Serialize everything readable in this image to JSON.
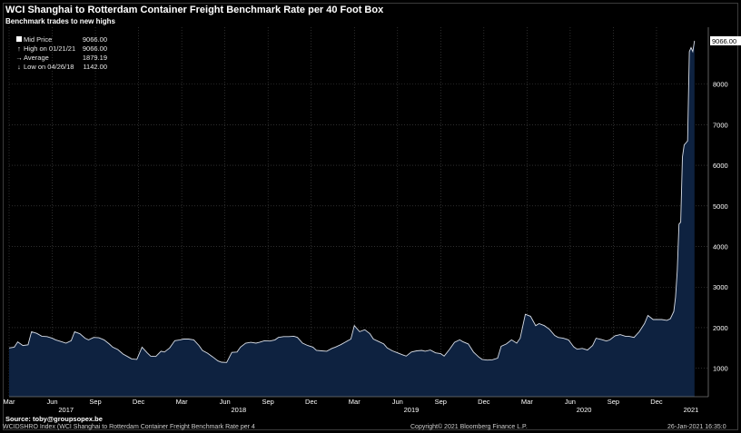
{
  "chart_data": {
    "type": "area",
    "title": "WCI Shanghai to Rotterdam Container Freight Benchmark Rate per 40 Foot Box",
    "subtitle": "Benchmark trades to new highs",
    "legend": [
      {
        "label": "Mid Price",
        "value": "9066.00",
        "icon": "square-icon"
      },
      {
        "label": "High on 01/21/21",
        "value": "9066.00",
        "icon": "high-marker-icon"
      },
      {
        "label": "Average",
        "value": "1879.19",
        "icon": "average-marker-icon"
      },
      {
        "label": "Low on 04/26/18",
        "value": "1142.00",
        "icon": "low-marker-icon"
      }
    ],
    "last_value_label": "9066.00",
    "y_ticks": [
      "1000",
      "2000",
      "3000",
      "4000",
      "5000",
      "6000",
      "7000",
      "8000"
    ],
    "ylim": [
      300,
      9400
    ],
    "x_ticks": [
      {
        "label": "Mar",
        "t": 0.0
      },
      {
        "label": "Jun",
        "t": 0.25
      },
      {
        "label": "Sep",
        "t": 0.5
      },
      {
        "label": "Dec",
        "t": 0.75
      },
      {
        "label": "Mar",
        "t": 1.0
      },
      {
        "label": "Jun",
        "t": 1.25
      },
      {
        "label": "Sep",
        "t": 1.5
      },
      {
        "label": "Dec",
        "t": 1.75
      },
      {
        "label": "Mar",
        "t": 2.0
      },
      {
        "label": "Jun",
        "t": 2.25
      },
      {
        "label": "Sep",
        "t": 2.5
      },
      {
        "label": "Dec",
        "t": 2.75
      },
      {
        "label": "Mar",
        "t": 3.0
      },
      {
        "label": "Jun",
        "t": 3.25
      },
      {
        "label": "Sep",
        "t": 3.5
      },
      {
        "label": "Dec",
        "t": 3.75
      }
    ],
    "year_labels": [
      {
        "label": "2017",
        "t": 0.33
      },
      {
        "label": "2018",
        "t": 1.33
      },
      {
        "label": "2019",
        "t": 2.33
      },
      {
        "label": "2020",
        "t": 3.33
      },
      {
        "label": "2021",
        "t": 3.95
      }
    ],
    "x_range": [
      0,
      4.05
    ],
    "series": [
      {
        "points": [
          [
            0.0,
            1500
          ],
          [
            0.03,
            1520
          ],
          [
            0.05,
            1650
          ],
          [
            0.08,
            1560
          ],
          [
            0.11,
            1580
          ],
          [
            0.13,
            1900
          ],
          [
            0.16,
            1860
          ],
          [
            0.19,
            1790
          ],
          [
            0.22,
            1780
          ],
          [
            0.25,
            1740
          ],
          [
            0.27,
            1700
          ],
          [
            0.3,
            1660
          ],
          [
            0.33,
            1620
          ],
          [
            0.36,
            1680
          ],
          [
            0.38,
            1900
          ],
          [
            0.41,
            1850
          ],
          [
            0.44,
            1740
          ],
          [
            0.46,
            1700
          ],
          [
            0.49,
            1760
          ],
          [
            0.52,
            1750
          ],
          [
            0.55,
            1700
          ],
          [
            0.58,
            1600
          ],
          [
            0.6,
            1520
          ],
          [
            0.63,
            1460
          ],
          [
            0.66,
            1350
          ],
          [
            0.69,
            1280
          ],
          [
            0.71,
            1230
          ],
          [
            0.74,
            1220
          ],
          [
            0.77,
            1520
          ],
          [
            0.8,
            1380
          ],
          [
            0.82,
            1300
          ],
          [
            0.85,
            1290
          ],
          [
            0.88,
            1420
          ],
          [
            0.9,
            1400
          ],
          [
            0.93,
            1500
          ],
          [
            0.96,
            1680
          ],
          [
            0.99,
            1700
          ],
          [
            1.01,
            1720
          ],
          [
            1.04,
            1720
          ],
          [
            1.07,
            1700
          ],
          [
            1.1,
            1560
          ],
          [
            1.12,
            1440
          ],
          [
            1.15,
            1370
          ],
          [
            1.18,
            1280
          ],
          [
            1.21,
            1180
          ],
          [
            1.23,
            1150
          ],
          [
            1.26,
            1142
          ],
          [
            1.29,
            1390
          ],
          [
            1.32,
            1400
          ],
          [
            1.34,
            1520
          ],
          [
            1.37,
            1620
          ],
          [
            1.4,
            1640
          ],
          [
            1.43,
            1620
          ],
          [
            1.45,
            1640
          ],
          [
            1.48,
            1680
          ],
          [
            1.51,
            1670
          ],
          [
            1.54,
            1700
          ],
          [
            1.56,
            1760
          ],
          [
            1.59,
            1780
          ],
          [
            1.62,
            1780
          ],
          [
            1.65,
            1790
          ],
          [
            1.67,
            1760
          ],
          [
            1.7,
            1620
          ],
          [
            1.73,
            1560
          ],
          [
            1.76,
            1520
          ],
          [
            1.78,
            1440
          ],
          [
            1.81,
            1430
          ],
          [
            1.84,
            1420
          ],
          [
            1.87,
            1490
          ],
          [
            1.89,
            1520
          ],
          [
            1.92,
            1580
          ],
          [
            1.95,
            1650
          ],
          [
            1.98,
            1720
          ],
          [
            2.0,
            2050
          ],
          [
            2.03,
            1900
          ],
          [
            2.06,
            1950
          ],
          [
            2.09,
            1850
          ],
          [
            2.11,
            1720
          ],
          [
            2.14,
            1660
          ],
          [
            2.17,
            1600
          ],
          [
            2.19,
            1500
          ],
          [
            2.22,
            1430
          ],
          [
            2.25,
            1380
          ],
          [
            2.28,
            1330
          ],
          [
            2.3,
            1300
          ],
          [
            2.33,
            1400
          ],
          [
            2.36,
            1430
          ],
          [
            2.39,
            1440
          ],
          [
            2.41,
            1420
          ],
          [
            2.44,
            1450
          ],
          [
            2.47,
            1380
          ],
          [
            2.5,
            1360
          ],
          [
            2.52,
            1300
          ],
          [
            2.55,
            1460
          ],
          [
            2.58,
            1640
          ],
          [
            2.61,
            1700
          ],
          [
            2.63,
            1650
          ],
          [
            2.66,
            1600
          ],
          [
            2.69,
            1400
          ],
          [
            2.72,
            1280
          ],
          [
            2.74,
            1220
          ],
          [
            2.77,
            1200
          ],
          [
            2.8,
            1210
          ],
          [
            2.83,
            1250
          ],
          [
            2.85,
            1540
          ],
          [
            2.88,
            1600
          ],
          [
            2.91,
            1700
          ],
          [
            2.94,
            1620
          ],
          [
            2.96,
            1740
          ],
          [
            2.99,
            2330
          ],
          [
            3.02,
            2280
          ],
          [
            3.05,
            2050
          ],
          [
            3.07,
            2100
          ],
          [
            3.1,
            2050
          ],
          [
            3.13,
            1960
          ],
          [
            3.16,
            1810
          ],
          [
            3.18,
            1760
          ],
          [
            3.21,
            1740
          ],
          [
            3.24,
            1700
          ],
          [
            3.27,
            1530
          ],
          [
            3.29,
            1470
          ],
          [
            3.32,
            1490
          ],
          [
            3.35,
            1450
          ],
          [
            3.38,
            1560
          ],
          [
            3.4,
            1740
          ],
          [
            3.43,
            1710
          ],
          [
            3.46,
            1670
          ],
          [
            3.48,
            1700
          ],
          [
            3.51,
            1800
          ],
          [
            3.54,
            1830
          ],
          [
            3.57,
            1790
          ],
          [
            3.59,
            1790
          ],
          [
            3.62,
            1760
          ],
          [
            3.65,
            1900
          ],
          [
            3.68,
            2100
          ],
          [
            3.7,
            2300
          ],
          [
            3.73,
            2200
          ],
          [
            3.76,
            2200
          ],
          [
            3.78,
            2200
          ],
          [
            3.81,
            2180
          ],
          [
            3.83,
            2220
          ],
          [
            3.85,
            2400
          ],
          [
            3.86,
            2750
          ],
          [
            3.87,
            3400
          ],
          [
            3.88,
            4550
          ],
          [
            3.89,
            4600
          ],
          [
            3.9,
            6200
          ],
          [
            3.91,
            6500
          ],
          [
            3.92,
            6550
          ],
          [
            3.93,
            6600
          ],
          [
            3.94,
            8800
          ],
          [
            3.95,
            8900
          ],
          [
            3.96,
            8800
          ],
          [
            3.97,
            9066
          ]
        ]
      }
    ]
  },
  "footer": {
    "source": "Source:  toby@groupsopex.be",
    "ticker": "WCIDSHRO Index (WCI Shanghai to Rotterdam Container Freight Benchmark Rate per 4",
    "copyright": "Copyright© 2021 Bloomberg Finance L.P.",
    "timestamp": "26-Jan-2021  16:35:0"
  },
  "colors": {
    "background": "#000000",
    "fill": "#0e2240",
    "line": "#d8dde6",
    "grid": "#4a4a4a",
    "axis_text": "#ffffff"
  }
}
